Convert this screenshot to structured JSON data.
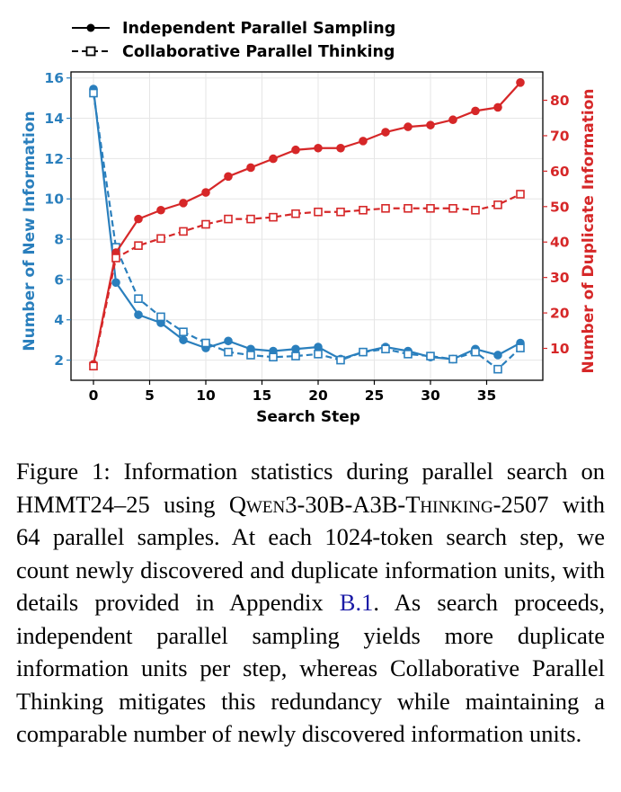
{
  "chart_data": {
    "type": "line",
    "x": [
      0,
      2,
      4,
      6,
      8,
      10,
      12,
      14,
      16,
      18,
      20,
      22,
      24,
      26,
      28,
      30,
      32,
      34,
      36,
      38
    ],
    "xlabel": "Search Step",
    "xticks": [
      0,
      5,
      10,
      15,
      20,
      25,
      30,
      35
    ],
    "xlim": [
      -2,
      40
    ],
    "left_axis": {
      "label": "Number of New Information",
      "color": "#2a7fbd",
      "ylim": [
        1,
        16.3
      ],
      "ticks": [
        2,
        4,
        6,
        8,
        10,
        12,
        14,
        16
      ]
    },
    "right_axis": {
      "label": "Number of Duplicate Information",
      "color": "#d62728",
      "ylim": [
        1,
        88
      ],
      "ticks": [
        10,
        20,
        30,
        40,
        50,
        60,
        70,
        80
      ]
    },
    "grid": true,
    "legend_position": "top-left, above plot",
    "series": [
      {
        "name": "Independent Parallel Sampling",
        "axis": "left",
        "style": "solid-filled-circle",
        "values": [
          15.45,
          5.85,
          4.25,
          3.85,
          3.0,
          2.6,
          2.95,
          2.55,
          2.45,
          2.55,
          2.65,
          2.05,
          2.4,
          2.65,
          2.45,
          2.15,
          2.05,
          2.55,
          2.25,
          2.85
        ]
      },
      {
        "name": "Collaborative Parallel Thinking",
        "axis": "left",
        "style": "dashed-open-square",
        "values": [
          15.25,
          7.6,
          5.05,
          4.15,
          3.4,
          2.85,
          2.4,
          2.25,
          2.15,
          2.2,
          2.3,
          2.0,
          2.4,
          2.55,
          2.3,
          2.2,
          2.05,
          2.4,
          1.55,
          2.6
        ]
      },
      {
        "name": "Independent Parallel Sampling",
        "axis": "right",
        "style": "solid-filled-circle",
        "values": [
          5.5,
          37,
          46.5,
          49,
          51,
          54,
          58.5,
          61,
          63.5,
          66,
          66.5,
          66.5,
          68.5,
          71,
          72.5,
          73,
          74.5,
          77,
          78,
          85
        ]
      },
      {
        "name": "Collaborative Parallel Thinking",
        "axis": "right",
        "style": "dashed-open-square",
        "values": [
          5,
          35.5,
          39,
          41,
          43,
          45,
          46.5,
          46.5,
          47,
          48,
          48.5,
          48.5,
          49,
          49.5,
          49.5,
          49.5,
          49.5,
          49,
          50.5,
          53.5
        ]
      }
    ]
  },
  "legend": {
    "item1": "Independent Parallel Sampling",
    "item2": "Collaborative Parallel Thinking"
  },
  "caption": {
    "p1": "Figure 1: Information statistics during parallel search on HMMT24–25 using ",
    "model": "Qwen3-30B-A3B-Thinking-2507",
    "p2": " with 64 parallel samples. At each 1024-token search step, we count newly discovered and duplicate information units, with details provided in Appendix ",
    "ref": "B.1",
    "p3": ". As search proceeds, independent parallel sampling yields more duplicate information units per step, whereas Collaborative Parallel Thinking mitigates this redundancy while maintaining a comparable number of newly discovered information units."
  }
}
